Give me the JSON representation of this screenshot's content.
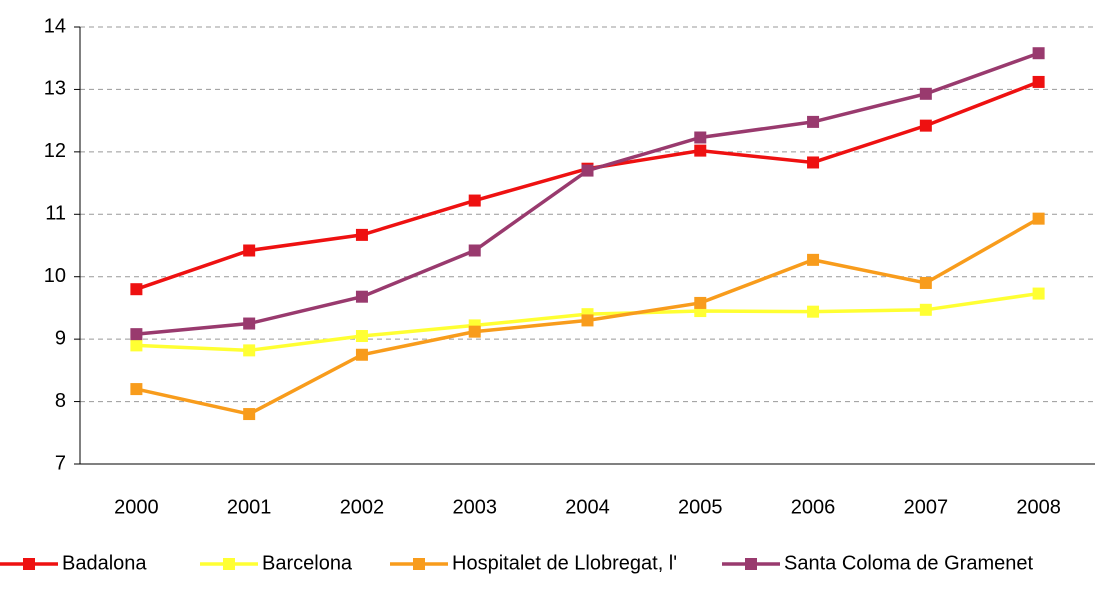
{
  "chart_data": {
    "type": "line",
    "categories": [
      "2000",
      "2001",
      "2002",
      "2003",
      "2004",
      "2005",
      "2006",
      "2007",
      "2008"
    ],
    "series": [
      {
        "name": "Badalona",
        "color": "#ee1111",
        "values": [
          9.8,
          10.42,
          10.67,
          11.22,
          11.73,
          12.02,
          11.83,
          12.42,
          13.12
        ]
      },
      {
        "name": "Barcelona",
        "color": "#ffff33",
        "values": [
          8.9,
          8.82,
          9.05,
          9.22,
          9.4,
          9.45,
          9.44,
          9.47,
          9.73
        ]
      },
      {
        "name": "Hospitalet de Llobregat, l'",
        "color": "#f89c1c",
        "values": [
          8.2,
          7.8,
          8.75,
          9.12,
          9.3,
          9.58,
          10.27,
          9.9,
          10.93
        ]
      },
      {
        "name": "Santa Coloma de Gramenet",
        "color": "#993a6e",
        "values": [
          9.08,
          9.25,
          9.68,
          10.42,
          11.7,
          12.23,
          12.48,
          12.93,
          13.58
        ]
      }
    ],
    "ylim": [
      7,
      14
    ],
    "yticks": [
      7,
      8,
      9,
      10,
      11,
      12,
      13,
      14
    ],
    "grid": true,
    "legend": "bottom"
  }
}
